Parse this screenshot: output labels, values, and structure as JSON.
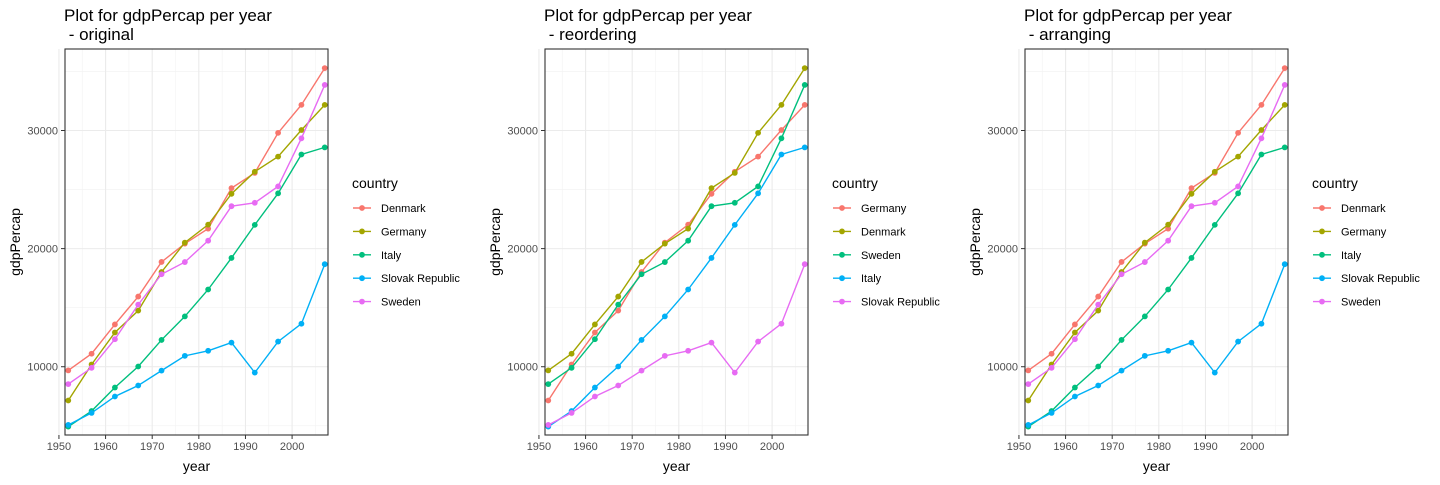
{
  "chart_data": [
    {
      "type": "line",
      "title": "Plot for gdpPercap per year\n - original",
      "xlabel": "year",
      "ylabel": "gdpPercap",
      "xlim": [
        1951.3,
        2007.7
      ],
      "ylim": [
        4220,
        36900
      ],
      "x_ticks": [
        1950,
        1960,
        1970,
        1980,
        1990,
        2000
      ],
      "y_ticks": [
        10000,
        20000,
        30000
      ],
      "grid": true,
      "legend_title": "country",
      "legend_position": "right",
      "x": [
        1952,
        1957,
        1962,
        1967,
        1972,
        1977,
        1982,
        1987,
        1992,
        1997,
        2002,
        2007
      ],
      "series": [
        {
          "name": "Denmark",
          "color": "#F8766D",
          "values": [
            9690,
            11100,
            13580,
            15940,
            18870,
            20420,
            21690,
            25120,
            26410,
            29800,
            32170,
            35280
          ]
        },
        {
          "name": "Germany",
          "color": "#A3A500",
          "values": [
            7140,
            10190,
            12900,
            14750,
            18020,
            20510,
            22030,
            24640,
            26510,
            27790,
            30040,
            32170
          ]
        },
        {
          "name": "Italy",
          "color": "#00BF7D",
          "values": [
            4930,
            6250,
            8240,
            10020,
            12270,
            14260,
            16540,
            19210,
            22010,
            24680,
            27970,
            28570
          ]
        },
        {
          "name": "Slovak Republic",
          "color": "#00B0F6",
          "values": [
            5070,
            6090,
            7480,
            8410,
            9670,
            10920,
            11350,
            12040,
            9500,
            12130,
            13640,
            18680
          ]
        },
        {
          "name": "Sweden",
          "color": "#E76BF3",
          "values": [
            8530,
            9910,
            12330,
            15260,
            17830,
            18860,
            20670,
            23590,
            23880,
            25270,
            29340,
            33860
          ]
        }
      ]
    },
    {
      "type": "line",
      "title": "Plot for gdpPercap per year\n - reordering",
      "xlabel": "year",
      "ylabel": "gdpPercap",
      "xlim": [
        1951.3,
        2007.7
      ],
      "ylim": [
        4220,
        36900
      ],
      "x_ticks": [
        1950,
        1960,
        1970,
        1980,
        1990,
        2000
      ],
      "y_ticks": [
        10000,
        20000,
        30000
      ],
      "grid": true,
      "legend_title": "country",
      "legend_position": "right",
      "x": [
        1952,
        1957,
        1962,
        1967,
        1972,
        1977,
        1982,
        1987,
        1992,
        1997,
        2002,
        2007
      ],
      "series": [
        {
          "name": "Germany",
          "color": "#F8766D",
          "values": [
            7140,
            10190,
            12900,
            14750,
            18020,
            20510,
            22030,
            24640,
            26510,
            27790,
            30040,
            32170
          ]
        },
        {
          "name": "Denmark",
          "color": "#A3A500",
          "values": [
            9690,
            11100,
            13580,
            15940,
            18870,
            20420,
            21690,
            25120,
            26410,
            29800,
            32170,
            35280
          ]
        },
        {
          "name": "Sweden",
          "color": "#00BF7D",
          "values": [
            8530,
            9910,
            12330,
            15260,
            17830,
            18860,
            20670,
            23590,
            23880,
            25270,
            29340,
            33860
          ]
        },
        {
          "name": "Italy",
          "color": "#00B0F6",
          "values": [
            4930,
            6250,
            8240,
            10020,
            12270,
            14260,
            16540,
            19210,
            22010,
            24680,
            27970,
            28570
          ]
        },
        {
          "name": "Slovak Republic",
          "color": "#E76BF3",
          "values": [
            5070,
            6090,
            7480,
            8410,
            9670,
            10920,
            11350,
            12040,
            9500,
            12130,
            13640,
            18680
          ]
        }
      ]
    },
    {
      "type": "line",
      "title": "Plot for gdpPercap per year\n - arranging",
      "xlabel": "year",
      "ylabel": "gdpPercap",
      "xlim": [
        1951.3,
        2007.7
      ],
      "ylim": [
        4220,
        36900
      ],
      "x_ticks": [
        1950,
        1960,
        1970,
        1980,
        1990,
        2000
      ],
      "y_ticks": [
        10000,
        20000,
        30000
      ],
      "grid": true,
      "legend_title": "country",
      "legend_position": "right",
      "x": [
        1952,
        1957,
        1962,
        1967,
        1972,
        1977,
        1982,
        1987,
        1992,
        1997,
        2002,
        2007
      ],
      "series": [
        {
          "name": "Denmark",
          "color": "#F8766D",
          "values": [
            9690,
            11100,
            13580,
            15940,
            18870,
            20420,
            21690,
            25120,
            26410,
            29800,
            32170,
            35280
          ]
        },
        {
          "name": "Germany",
          "color": "#A3A500",
          "values": [
            7140,
            10190,
            12900,
            14750,
            18020,
            20510,
            22030,
            24640,
            26510,
            27790,
            30040,
            32170
          ]
        },
        {
          "name": "Italy",
          "color": "#00BF7D",
          "values": [
            4930,
            6250,
            8240,
            10020,
            12270,
            14260,
            16540,
            19210,
            22010,
            24680,
            27970,
            28570
          ]
        },
        {
          "name": "Slovak Republic",
          "color": "#00B0F6",
          "values": [
            5070,
            6090,
            7480,
            8410,
            9670,
            10920,
            11350,
            12040,
            9500,
            12130,
            13640,
            18680
          ]
        },
        {
          "name": "Sweden",
          "color": "#E76BF3",
          "values": [
            8530,
            9910,
            12330,
            15260,
            17830,
            18860,
            20670,
            23590,
            23880,
            25270,
            29340,
            33860
          ]
        }
      ]
    }
  ]
}
